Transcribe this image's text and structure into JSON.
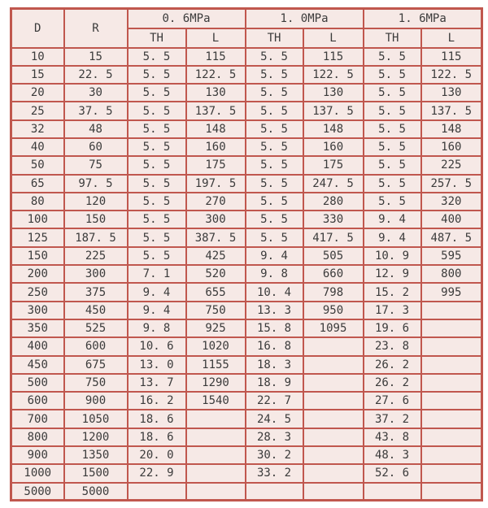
{
  "colors": {
    "border": "#c0574e",
    "cell_background": "#f6e9e6",
    "text": "#3b3b3b",
    "page_background": "#ffffff"
  },
  "chart_data": {
    "type": "table",
    "title": "",
    "header": {
      "d": "D",
      "r": "R",
      "groups": [
        {
          "label": "0. 6MPa",
          "subcolumns": [
            "TH",
            "L"
          ]
        },
        {
          "label": "1. 0MPa",
          "subcolumns": [
            "TH",
            "L"
          ]
        },
        {
          "label": "1. 6MPa",
          "subcolumns": [
            "TH",
            "L"
          ]
        }
      ]
    },
    "columns_flat": [
      "D",
      "R",
      "0.6MPa TH",
      "0.6MPa L",
      "1.0MPa TH",
      "1.0MPa L",
      "1.6MPa TH",
      "1.6MPa L"
    ],
    "rows": [
      [
        "10",
        "15",
        "5. 5",
        "115",
        "5. 5",
        "115",
        "5. 5",
        "115"
      ],
      [
        "15",
        "22. 5",
        "5. 5",
        "122. 5",
        "5. 5",
        "122. 5",
        "5. 5",
        "122. 5"
      ],
      [
        "20",
        "30",
        "5. 5",
        "130",
        "5. 5",
        "130",
        "5. 5",
        "130"
      ],
      [
        "25",
        "37. 5",
        "5. 5",
        "137. 5",
        "5. 5",
        "137. 5",
        "5. 5",
        "137. 5"
      ],
      [
        "32",
        "48",
        "5. 5",
        "148",
        "5. 5",
        "148",
        "5. 5",
        "148"
      ],
      [
        "40",
        "60",
        "5. 5",
        "160",
        "5. 5",
        "160",
        "5. 5",
        "160"
      ],
      [
        "50",
        "75",
        "5. 5",
        "175",
        "5. 5",
        "175",
        "5. 5",
        "225"
      ],
      [
        "65",
        "97. 5",
        "5. 5",
        "197. 5",
        "5. 5",
        "247. 5",
        "5. 5",
        "257. 5"
      ],
      [
        "80",
        "120",
        "5. 5",
        "270",
        "5. 5",
        "280",
        "5. 5",
        "320"
      ],
      [
        "100",
        "150",
        "5. 5",
        "300",
        "5. 5",
        "330",
        "9. 4",
        "400"
      ],
      [
        "125",
        "187. 5",
        "5. 5",
        "387. 5",
        "5. 5",
        "417. 5",
        "9. 4",
        "487. 5"
      ],
      [
        "150",
        "225",
        "5. 5",
        "425",
        "9. 4",
        "505",
        "10. 9",
        "595"
      ],
      [
        "200",
        "300",
        "7. 1",
        "520",
        "9. 8",
        "660",
        "12. 9",
        "800"
      ],
      [
        "250",
        "375",
        "9. 4",
        "655",
        "10. 4",
        "798",
        "15. 2",
        "995"
      ],
      [
        "300",
        "450",
        "9. 4",
        "750",
        "13. 3",
        "950",
        "17. 3",
        ""
      ],
      [
        "350",
        "525",
        "9. 8",
        "925",
        "15. 8",
        "1095",
        "19. 6",
        ""
      ],
      [
        "400",
        "600",
        "10. 6",
        "1020",
        "16. 8",
        "",
        "23. 8",
        ""
      ],
      [
        "450",
        "675",
        "13. 0",
        "1155",
        "18. 3",
        "",
        "26. 2",
        ""
      ],
      [
        "500",
        "750",
        "13. 7",
        "1290",
        "18. 9",
        "",
        "26. 2",
        ""
      ],
      [
        "600",
        "900",
        "16. 2",
        "1540",
        "22. 7",
        "",
        "27. 6",
        ""
      ],
      [
        "700",
        "1050",
        "18. 6",
        "",
        "24. 5",
        "",
        "37. 2",
        ""
      ],
      [
        "800",
        "1200",
        "18. 6",
        "",
        "28. 3",
        "",
        "43. 8",
        ""
      ],
      [
        "900",
        "1350",
        "20. 0",
        "",
        "30. 2",
        "",
        "48. 3",
        ""
      ],
      [
        "1000",
        "1500",
        "22. 9",
        "",
        "33. 2",
        "",
        "52. 6",
        ""
      ],
      [
        "5000",
        "5000",
        "",
        "",
        "",
        "",
        "",
        ""
      ]
    ]
  }
}
